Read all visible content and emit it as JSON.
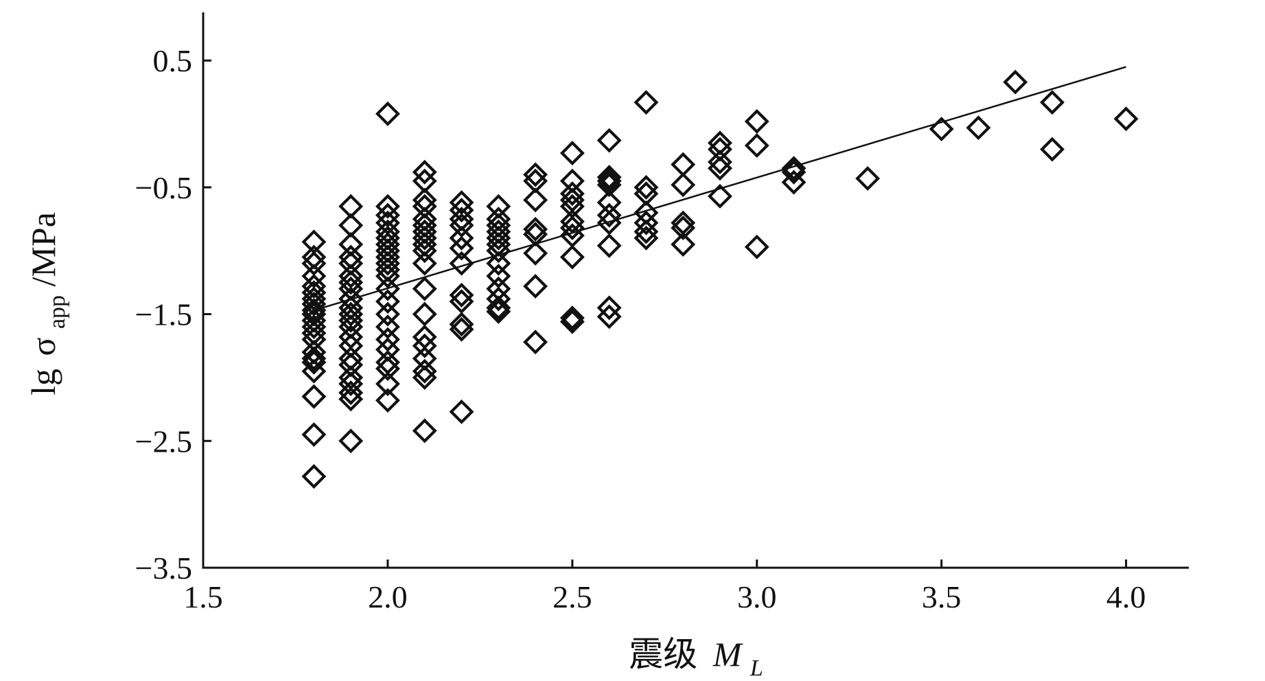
{
  "chart_data": {
    "type": "scatter",
    "xlabel": "震级",
    "xlabel_var": "M",
    "xlabel_sub": "L",
    "ylabel_prefix": "lg",
    "ylabel_symbol": "σ",
    "ylabel_sub": "app",
    "ylabel_unit": "/MPa",
    "xlim": [
      1.5,
      4.17
    ],
    "ylim": [
      -3.5,
      0.88
    ],
    "x_ticks": [
      {
        "value": 1.5,
        "label": "1.5"
      },
      {
        "value": 2.0,
        "label": "2.0"
      },
      {
        "value": 2.5,
        "label": "2.5"
      },
      {
        "value": 3.0,
        "label": "3.0"
      },
      {
        "value": 3.5,
        "label": "3.5"
      },
      {
        "value": 4.0,
        "label": "4.0"
      }
    ],
    "y_ticks": [
      {
        "value": 0.5,
        "label": "0.5"
      },
      {
        "value": -0.5,
        "label": "−0.5"
      },
      {
        "value": -1.5,
        "label": "−1.5"
      },
      {
        "value": -2.5,
        "label": "−2.5"
      },
      {
        "value": -3.5,
        "label": "−3.5"
      }
    ],
    "fit_line": {
      "x": [
        1.8,
        4.0
      ],
      "y": [
        -1.47,
        0.45
      ]
    },
    "marker": "diamond",
    "series": [
      {
        "points": [
          [
            1.8,
            -0.93
          ],
          [
            1.8,
            -1.05
          ],
          [
            1.8,
            -1.1
          ],
          [
            1.8,
            -1.2
          ],
          [
            1.8,
            -1.28
          ],
          [
            1.8,
            -1.33
          ],
          [
            1.8,
            -1.38
          ],
          [
            1.8,
            -1.42
          ],
          [
            1.8,
            -1.47
          ],
          [
            1.8,
            -1.5
          ],
          [
            1.8,
            -1.55
          ],
          [
            1.8,
            -1.6
          ],
          [
            1.8,
            -1.65
          ],
          [
            1.8,
            -1.7
          ],
          [
            1.8,
            -1.8
          ],
          [
            1.8,
            -1.85
          ],
          [
            1.8,
            -1.88
          ],
          [
            1.8,
            -1.95
          ],
          [
            1.8,
            -2.15
          ],
          [
            1.8,
            -2.45
          ],
          [
            1.8,
            -2.78
          ],
          [
            1.9,
            -0.65
          ],
          [
            1.9,
            -0.8
          ],
          [
            1.9,
            -0.95
          ],
          [
            1.9,
            -1.05
          ],
          [
            1.9,
            -1.1
          ],
          [
            1.9,
            -1.2
          ],
          [
            1.9,
            -1.25
          ],
          [
            1.9,
            -1.3
          ],
          [
            1.9,
            -1.38
          ],
          [
            1.9,
            -1.45
          ],
          [
            1.9,
            -1.5
          ],
          [
            1.9,
            -1.55
          ],
          [
            1.9,
            -1.6
          ],
          [
            1.9,
            -1.68
          ],
          [
            1.9,
            -1.75
          ],
          [
            1.9,
            -1.85
          ],
          [
            1.9,
            -1.9
          ],
          [
            1.9,
            -2.0
          ],
          [
            1.9,
            -2.05
          ],
          [
            1.9,
            -2.12
          ],
          [
            1.9,
            -2.17
          ],
          [
            1.9,
            -2.5
          ],
          [
            2.0,
            0.08
          ],
          [
            2.0,
            -0.65
          ],
          [
            2.0,
            -0.72
          ],
          [
            2.0,
            -0.78
          ],
          [
            2.0,
            -0.85
          ],
          [
            2.0,
            -0.9
          ],
          [
            2.0,
            -0.95
          ],
          [
            2.0,
            -1.0
          ],
          [
            2.0,
            -1.05
          ],
          [
            2.0,
            -1.1
          ],
          [
            2.0,
            -1.15
          ],
          [
            2.0,
            -1.2
          ],
          [
            2.0,
            -1.3
          ],
          [
            2.0,
            -1.4
          ],
          [
            2.0,
            -1.5
          ],
          [
            2.0,
            -1.6
          ],
          [
            2.0,
            -1.7
          ],
          [
            2.0,
            -1.78
          ],
          [
            2.0,
            -1.88
          ],
          [
            2.0,
            -1.93
          ],
          [
            2.0,
            -2.05
          ],
          [
            2.0,
            -2.18
          ],
          [
            2.1,
            -0.38
          ],
          [
            2.1,
            -0.45
          ],
          [
            2.1,
            -0.6
          ],
          [
            2.1,
            -0.65
          ],
          [
            2.1,
            -0.75
          ],
          [
            2.1,
            -0.8
          ],
          [
            2.1,
            -0.85
          ],
          [
            2.1,
            -0.9
          ],
          [
            2.1,
            -0.95
          ],
          [
            2.1,
            -1.0
          ],
          [
            2.1,
            -1.1
          ],
          [
            2.1,
            -1.3
          ],
          [
            2.1,
            -1.5
          ],
          [
            2.1,
            -1.68
          ],
          [
            2.1,
            -1.75
          ],
          [
            2.1,
            -1.85
          ],
          [
            2.1,
            -1.95
          ],
          [
            2.1,
            -2.0
          ],
          [
            2.1,
            -2.42
          ],
          [
            2.2,
            -0.62
          ],
          [
            2.2,
            -0.68
          ],
          [
            2.2,
            -0.75
          ],
          [
            2.2,
            -0.8
          ],
          [
            2.2,
            -0.9
          ],
          [
            2.2,
            -0.98
          ],
          [
            2.2,
            -1.1
          ],
          [
            2.2,
            -1.35
          ],
          [
            2.2,
            -1.4
          ],
          [
            2.2,
            -1.58
          ],
          [
            2.2,
            -1.62
          ],
          [
            2.2,
            -2.27
          ],
          [
            2.3,
            -0.65
          ],
          [
            2.3,
            -0.75
          ],
          [
            2.3,
            -0.8
          ],
          [
            2.3,
            -0.85
          ],
          [
            2.3,
            -0.9
          ],
          [
            2.3,
            -0.95
          ],
          [
            2.3,
            -1.0
          ],
          [
            2.3,
            -1.1
          ],
          [
            2.3,
            -1.2
          ],
          [
            2.3,
            -1.3
          ],
          [
            2.3,
            -1.38
          ],
          [
            2.3,
            -1.45
          ],
          [
            2.3,
            -1.48
          ],
          [
            2.4,
            -0.4
          ],
          [
            2.4,
            -0.45
          ],
          [
            2.4,
            -0.6
          ],
          [
            2.4,
            -0.83
          ],
          [
            2.4,
            -0.87
          ],
          [
            2.4,
            -1.02
          ],
          [
            2.4,
            -1.28
          ],
          [
            2.4,
            -1.72
          ],
          [
            2.5,
            -0.23
          ],
          [
            2.5,
            -0.45
          ],
          [
            2.5,
            -0.55
          ],
          [
            2.5,
            -0.6
          ],
          [
            2.5,
            -0.65
          ],
          [
            2.5,
            -0.77
          ],
          [
            2.5,
            -0.82
          ],
          [
            2.5,
            -0.88
          ],
          [
            2.5,
            -1.05
          ],
          [
            2.5,
            -1.53
          ],
          [
            2.5,
            -1.56
          ],
          [
            2.6,
            -0.13
          ],
          [
            2.6,
            -0.42
          ],
          [
            2.6,
            -0.45
          ],
          [
            2.6,
            -0.48
          ],
          [
            2.6,
            -0.62
          ],
          [
            2.6,
            -0.72
          ],
          [
            2.6,
            -0.78
          ],
          [
            2.6,
            -0.96
          ],
          [
            2.6,
            -1.45
          ],
          [
            2.6,
            -1.52
          ],
          [
            2.7,
            0.17
          ],
          [
            2.7,
            -0.5
          ],
          [
            2.7,
            -0.55
          ],
          [
            2.7,
            -0.7
          ],
          [
            2.7,
            -0.78
          ],
          [
            2.7,
            -0.85
          ],
          [
            2.7,
            -0.9
          ],
          [
            2.8,
            -0.32
          ],
          [
            2.8,
            -0.48
          ],
          [
            2.8,
            -0.78
          ],
          [
            2.8,
            -0.82
          ],
          [
            2.8,
            -0.95
          ],
          [
            2.9,
            -0.15
          ],
          [
            2.9,
            -0.2
          ],
          [
            2.9,
            -0.3
          ],
          [
            2.9,
            -0.35
          ],
          [
            2.9,
            -0.57
          ],
          [
            3.0,
            0.02
          ],
          [
            3.0,
            -0.17
          ],
          [
            3.0,
            -0.97
          ],
          [
            3.1,
            -0.35
          ],
          [
            3.1,
            -0.38
          ],
          [
            3.1,
            -0.46
          ],
          [
            3.3,
            -0.43
          ],
          [
            3.5,
            -0.04
          ],
          [
            3.6,
            -0.03
          ],
          [
            3.7,
            0.33
          ],
          [
            3.8,
            0.17
          ],
          [
            3.8,
            -0.2
          ],
          [
            4.0,
            0.04
          ]
        ]
      }
    ]
  }
}
